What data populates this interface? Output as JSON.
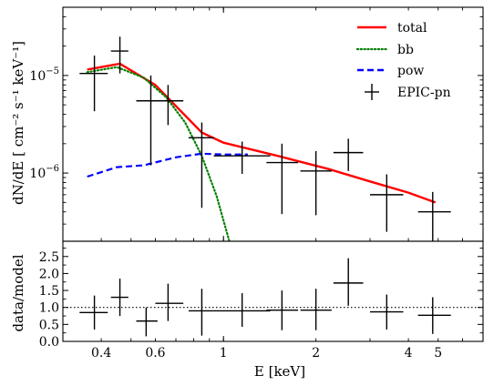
{
  "chart_data": [
    {
      "type": "line",
      "panel": "spectrum",
      "ylabel": "dN/dE [ cm⁻² s⁻¹ keV⁻¹]",
      "xscale": "log",
      "yscale": "log",
      "xlim": [
        0.3,
        7.0
      ],
      "ylim": [
        2e-07,
        5e-05
      ],
      "x_ticks": [
        {
          "v": 0.4,
          "label": "0.4"
        },
        {
          "v": 0.6,
          "label": "0.6"
        },
        {
          "v": 1,
          "label": "1"
        },
        {
          "v": 2,
          "label": "2"
        },
        {
          "v": 4,
          "label": "4"
        },
        {
          "v": 5,
          "label": "5"
        }
      ],
      "y_ticks": [
        {
          "v": 1e-06,
          "base": "10",
          "exp": "−6"
        },
        {
          "v": 1e-05,
          "base": "10",
          "exp": "−5"
        }
      ],
      "legend_position": "top-right",
      "series": [
        {
          "name": "total",
          "style": "solid",
          "color": "#ff0000",
          "points": [
            [
              0.36,
              1.15e-05
            ],
            [
              0.46,
              1.32e-05
            ],
            [
              0.6,
              8e-06
            ],
            [
              0.85,
              2.6e-06
            ],
            [
              1.0,
              2.05e-06
            ],
            [
              1.5,
              1.5e-06
            ],
            [
              2.2,
              1.1e-06
            ],
            [
              3.0,
              8.2e-07
            ],
            [
              4.0,
              6.3e-07
            ],
            [
              4.9,
              5e-07
            ]
          ]
        },
        {
          "name": "bb",
          "style": "dotted",
          "color": "#008000",
          "points": [
            [
              0.36,
              1.08e-05
            ],
            [
              0.45,
              1.22e-05
            ],
            [
              0.55,
              9.5e-06
            ],
            [
              0.65,
              6e-06
            ],
            [
              0.75,
              3.3e-06
            ],
            [
              0.85,
              1.5e-06
            ],
            [
              0.95,
              5.8e-07
            ],
            [
              1.05,
              1.9e-07
            ]
          ]
        },
        {
          "name": "pow",
          "style": "dashed",
          "color": "#0000ff",
          "points": [
            [
              0.36,
              9.2e-07
            ],
            [
              0.45,
              1.15e-06
            ],
            [
              0.55,
              1.2e-06
            ],
            [
              0.7,
              1.45e-06
            ],
            [
              0.85,
              1.58e-06
            ],
            [
              1.0,
              1.55e-06
            ],
            [
              1.2,
              1.55e-06
            ]
          ]
        },
        {
          "name": "EPIC-pn",
          "style": "crosses",
          "color": "#000000",
          "points": [
            {
              "x": 0.38,
              "xlo": 0.34,
              "xhi": 0.42,
              "y": 1.05e-05,
              "ylo": 4.3e-06,
              "yhi": 1.6e-05
            },
            {
              "x": 0.46,
              "xlo": 0.43,
              "xhi": 0.49,
              "y": 1.78e-05,
              "ylo": 1.05e-05,
              "yhi": 2.5e-05
            },
            {
              "x": 0.58,
              "xlo": 0.52,
              "xhi": 0.64,
              "y": 5.5e-06,
              "ylo": 1.2e-06,
              "yhi": 1e-05
            },
            {
              "x": 0.66,
              "xlo": 0.6,
              "xhi": 0.74,
              "y": 5.5e-06,
              "ylo": 3.1e-06,
              "yhi": 8e-06
            },
            {
              "x": 0.85,
              "xlo": 0.77,
              "xhi": 0.93,
              "y": 2.3e-06,
              "ylo": 4.4e-07,
              "yhi": 3.3e-06
            },
            {
              "x": 1.15,
              "xlo": 0.93,
              "xhi": 1.42,
              "y": 1.5e-06,
              "ylo": 9.8e-07,
              "yhi": 2.1e-06
            },
            {
              "x": 1.55,
              "xlo": 1.38,
              "xhi": 1.75,
              "y": 1.28e-06,
              "ylo": 3.8e-07,
              "yhi": 2e-06
            },
            {
              "x": 2.0,
              "xlo": 1.78,
              "xhi": 2.25,
              "y": 1.05e-06,
              "ylo": 3.7e-07,
              "yhi": 1.68e-06
            },
            {
              "x": 2.55,
              "xlo": 2.28,
              "xhi": 2.85,
              "y": 1.62e-06,
              "ylo": 1.05e-06,
              "yhi": 2.25e-06
            },
            {
              "x": 3.4,
              "xlo": 3.0,
              "xhi": 3.85,
              "y": 6e-07,
              "ylo": 2.5e-07,
              "yhi": 9.7e-07
            },
            {
              "x": 4.8,
              "xlo": 4.3,
              "xhi": 5.5,
              "y": 4e-07,
              "ylo": 2e-07,
              "yhi": 6.4e-07
            }
          ]
        }
      ]
    },
    {
      "type": "scatter",
      "panel": "ratio",
      "xlabel": "E [keV]",
      "ylabel": "data/model",
      "xscale": "log",
      "xlim": [
        0.3,
        7.0
      ],
      "ylim": [
        0.0,
        2.95
      ],
      "y_ticks": [
        {
          "v": 0.0,
          "label": "0.0"
        },
        {
          "v": 0.5,
          "label": "0.5"
        },
        {
          "v": 1.0,
          "label": "1.0"
        },
        {
          "v": 1.5,
          "label": "1.5"
        },
        {
          "v": 2.0,
          "label": "2.0"
        },
        {
          "v": 2.5,
          "label": "2.5"
        }
      ],
      "reference_line": 1.0,
      "points": [
        {
          "x": 0.38,
          "xlo": 0.34,
          "xhi": 0.42,
          "y": 0.85,
          "ylo": 0.35,
          "yhi": 1.35
        },
        {
          "x": 0.46,
          "xlo": 0.43,
          "xhi": 0.49,
          "y": 1.3,
          "ylo": 0.75,
          "yhi": 1.85
        },
        {
          "x": 0.56,
          "xlo": 0.52,
          "xhi": 0.61,
          "y": 0.6,
          "ylo": 0.15,
          "yhi": 1.0
        },
        {
          "x": 0.66,
          "xlo": 0.6,
          "xhi": 0.74,
          "y": 1.12,
          "ylo": 0.6,
          "yhi": 1.7
        },
        {
          "x": 0.85,
          "xlo": 0.77,
          "xhi": 0.93,
          "y": 0.9,
          "ylo": 0.17,
          "yhi": 1.55
        },
        {
          "x": 1.15,
          "xlo": 0.93,
          "xhi": 1.42,
          "y": 0.9,
          "ylo": 0.43,
          "yhi": 1.42
        },
        {
          "x": 1.55,
          "xlo": 1.38,
          "xhi": 1.75,
          "y": 0.92,
          "ylo": 0.33,
          "yhi": 1.5
        },
        {
          "x": 2.0,
          "xlo": 1.78,
          "xhi": 2.25,
          "y": 0.92,
          "ylo": 0.33,
          "yhi": 1.55
        },
        {
          "x": 2.55,
          "xlo": 2.28,
          "xhi": 2.85,
          "y": 1.72,
          "ylo": 1.05,
          "yhi": 2.45
        },
        {
          "x": 3.4,
          "xlo": 3.0,
          "xhi": 3.85,
          "y": 0.87,
          "ylo": 0.35,
          "yhi": 1.38
        },
        {
          "x": 4.8,
          "xlo": 4.3,
          "xhi": 5.5,
          "y": 0.77,
          "ylo": 0.22,
          "yhi": 1.3
        }
      ]
    }
  ]
}
